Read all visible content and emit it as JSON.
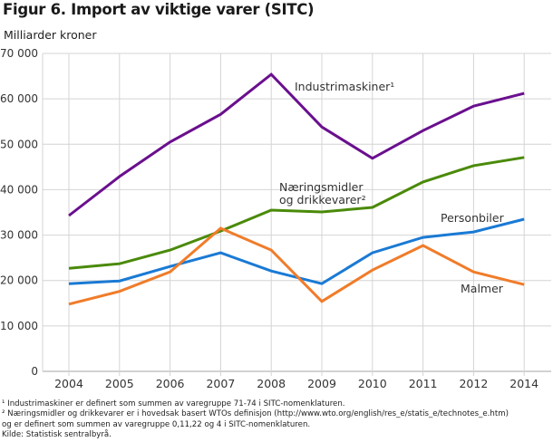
{
  "figure": {
    "title": "Figur 6. Import av viktige varer (SITC)",
    "unit_label": "Milliarder kroner"
  },
  "chart_data": {
    "type": "line",
    "title": "Figur 6. Import av viktige varer (SITC)",
    "xlabel": "",
    "ylabel": "Milliarder kroner",
    "x": [
      "2004",
      "2005",
      "2006",
      "2007",
      "2008",
      "2009",
      "2010",
      "2011",
      "2012",
      "2014"
    ],
    "ylim": [
      0,
      70000
    ],
    "yticks": [
      0,
      10000,
      20000,
      30000,
      40000,
      50000,
      60000,
      70000
    ],
    "ytick_labels": [
      "0",
      "10 000",
      "20 000",
      "30 000",
      "40 000",
      "50 000",
      "60 000",
      "70 000"
    ],
    "grid": true,
    "legend": "inline labels",
    "series": [
      {
        "name": "Industrimaskiner",
        "label": "Industrimaskiner¹",
        "color": "#6a0f8e",
        "values": [
          34300,
          42900,
          50500,
          56600,
          65400,
          53800,
          46900,
          53000,
          58400,
          61200
        ]
      },
      {
        "name": "Næringsmidler og drikkevarer",
        "label_lines": [
          "Næringsmidler",
          "og drikkevarer²"
        ],
        "color": "#4a8a09",
        "values": [
          22700,
          23700,
          26700,
          30900,
          35500,
          35100,
          36100,
          41700,
          45300,
          47100
        ]
      },
      {
        "name": "Personbiler",
        "label": "Personbiler",
        "color": "#1a7ad4",
        "values": [
          19300,
          19900,
          23100,
          26100,
          22100,
          19300,
          26100,
          29500,
          30700,
          33500
        ]
      },
      {
        "name": "Malmer",
        "label": "Malmer",
        "color": "#f07c2a",
        "values": [
          14800,
          17600,
          21900,
          31500,
          26700,
          15400,
          22300,
          27700,
          21900,
          19100
        ]
      }
    ]
  },
  "notes": [
    "¹ Industrimaskiner er definert som summen av varegruppe 71-74 i SITC-nomenklaturen.",
    "² Næringsmidler og drikkevarer  er i hovedsak basert WTOs definisjon (http://www.wto.org/english/res_e/statis_e/technotes_e.htm)",
    "og er definert som summen av varegruppe 0,11,22 og 4 i SITC-nomenklaturen.",
    "Kilde: Statistisk sentralbyrå."
  ]
}
